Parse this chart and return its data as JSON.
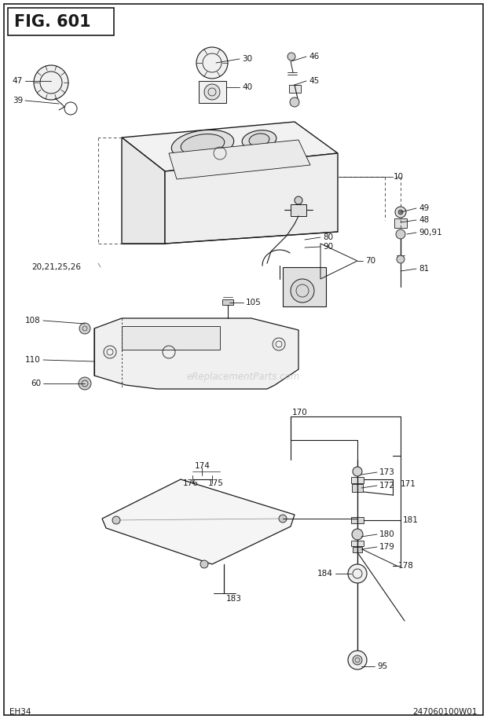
{
  "title": "FIG. 601",
  "footer_left": "EH34",
  "footer_right": "247060100W01",
  "watermark": "eReplacementParts.com",
  "bg_color": "#ffffff",
  "lc": "#1a1a1a",
  "lw_main": 1.0,
  "lw_thin": 0.6,
  "lw_leader": 0.6,
  "fontsize_label": 7.5,
  "fontsize_title": 15,
  "fontsize_footer": 7.5
}
